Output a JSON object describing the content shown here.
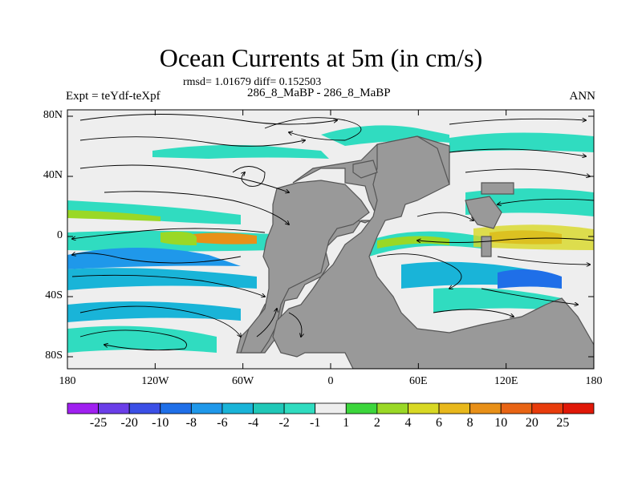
{
  "title": "Ocean Currents at 5m (in cm/s)",
  "stats": "rmsd= 1.01679 diff= 0.152503",
  "left_label": "Expt = teYdf-teXpf",
  "center_label": "286_8_MaBP - 286_8_MaBP",
  "right_label": "ANN",
  "y_axis": {
    "ticks": [
      {
        "label": "80N",
        "lat": 80
      },
      {
        "label": "40N",
        "lat": 40
      },
      {
        "label": "0",
        "lat": 0
      },
      {
        "label": "40S",
        "lat": -40
      },
      {
        "label": "80S",
        "lat": -80
      }
    ]
  },
  "x_axis": {
    "ticks": [
      {
        "label": "180",
        "lon": -180
      },
      {
        "label": "120W",
        "lon": -120
      },
      {
        "label": "60W",
        "lon": -60
      },
      {
        "label": "0",
        "lon": 0
      },
      {
        "label": "60E",
        "lon": 60
      },
      {
        "label": "120E",
        "lon": 120
      },
      {
        "label": "180",
        "lon": 180
      }
    ]
  },
  "colorbar": {
    "labels": [
      "-25",
      "-20",
      "-10",
      "-8",
      "-6",
      "-4",
      "-2",
      "-1",
      "1",
      "2",
      "4",
      "6",
      "8",
      "10",
      "20",
      "25"
    ],
    "colors": [
      "#a020f0",
      "#6a3ee8",
      "#3b4fe6",
      "#1f6fe8",
      "#1f98ea",
      "#19b4d8",
      "#20c8b8",
      "#30dcc0",
      "#eeeeee",
      "#3cd63c",
      "#9ad826",
      "#d8d824",
      "#e8b81c",
      "#e89018",
      "#e86414",
      "#e83c0c",
      "#e01808"
    ]
  },
  "colors": {
    "land": "#999999",
    "ocean_background": "#eeeeee",
    "streamline": "#000000"
  }
}
